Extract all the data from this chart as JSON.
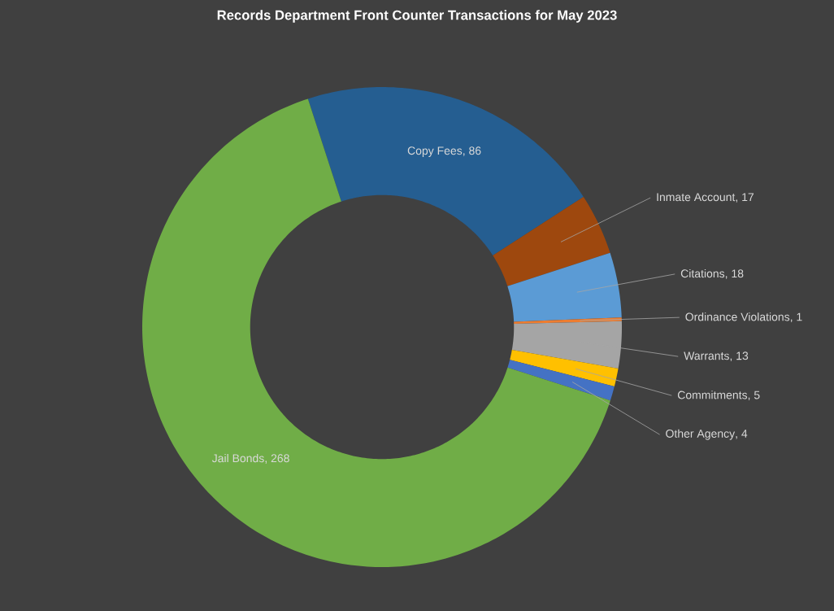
{
  "chart_data": {
    "type": "donut",
    "title": "Records Department Front Counter Transactions for May 2023",
    "categories": [
      "Copy Fees",
      "Inmate Account",
      "Citations",
      "Ordinance Violations",
      "Warrants",
      "Commitments",
      "Other Agency",
      "Jail Bonds"
    ],
    "values": [
      86,
      17,
      18,
      1,
      13,
      5,
      4,
      268
    ],
    "colors": [
      "#255e91",
      "#9e480e",
      "#5b9bd5",
      "#ed7d31",
      "#a5a5a5",
      "#ffc000",
      "#4472c4",
      "#70ad47"
    ],
    "value_labels": [
      ", 86",
      ", 17",
      ", 18",
      ", 1",
      ", 13",
      ", 5",
      ", 4",
      ", 268"
    ]
  }
}
